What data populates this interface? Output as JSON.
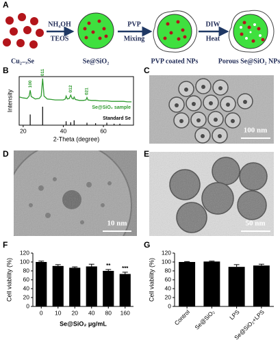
{
  "figure": {
    "A": {
      "label": "A",
      "reagents": [
        {
          "top": "NH₄OH",
          "bottom": "TEOS"
        },
        {
          "top": "PVP",
          "bottom": "Mixing"
        },
        {
          "top": "DIW",
          "bottom": "Heat"
        }
      ],
      "stages": [
        "Cu₂₋ₓSe",
        "Se@SiO₂",
        "PVP coated NPs",
        "Porous Se@SiO₂ NPs"
      ]
    },
    "B": {
      "label": "B"
    },
    "C": {
      "label": "C",
      "scale_bar": "100 nm"
    },
    "D": {
      "label": "D",
      "scale_bar": "10 nm"
    },
    "E": {
      "label": "E",
      "scale_bar": "50 nm"
    },
    "F": {
      "label": "F"
    },
    "G": {
      "label": "G"
    }
  },
  "chart_data": [
    {
      "type": "line",
      "xlabel": "2-Theta (degree)",
      "ylabel": "Intensity",
      "xlim": [
        18,
        75
      ],
      "ylim": [
        0,
        100
      ],
      "xticks": [
        20,
        40,
        60
      ],
      "series": [
        {
          "name": "Se@SiO₂ sample",
          "color": "#2e9a2e",
          "style": "line",
          "x": [
            18,
            20,
            22,
            23,
            23.5,
            24,
            26,
            28,
            29,
            29.7,
            30.4,
            32,
            34,
            36,
            38,
            40,
            41,
            41.4,
            42,
            43,
            43.7,
            44.4,
            45,
            45.4,
            46,
            48,
            50,
            51.3,
            51.8,
            52.3,
            54,
            56,
            58,
            60,
            62,
            64,
            66,
            68,
            70,
            72,
            74
          ],
          "values": [
            58,
            56,
            55,
            60,
            72,
            59,
            54,
            55,
            60,
            96,
            60,
            54,
            53,
            52,
            52,
            52,
            54,
            60,
            54,
            55,
            62,
            55,
            54,
            58,
            53,
            51,
            51,
            52,
            57,
            52,
            51,
            51,
            50,
            50,
            50,
            49,
            49,
            49,
            49,
            48,
            48
          ]
        },
        {
          "name": "Standard Se",
          "color": "#000000",
          "style": "stick",
          "x": [
            23.5,
            29.7,
            41.4,
            43.7,
            45.4,
            51.8,
            56.1,
            61.7,
            65.3,
            68.2
          ],
          "values": [
            22,
            38,
            8,
            6,
            10,
            5,
            4,
            5,
            3,
            3
          ]
        }
      ],
      "annotations": [
        {
          "text": "100",
          "x": 23.5,
          "y": 72
        },
        {
          "text": "011",
          "x": 29.7,
          "y": 96
        },
        {
          "text": "012",
          "x": 43.7,
          "y": 62
        },
        {
          "text": "021",
          "x": 51.8,
          "y": 57
        }
      ]
    },
    {
      "type": "bar",
      "xlabel": "Se@SiO₂ μg/mL",
      "ylabel": "Cell viability (%)",
      "color": "#000000",
      "categories": [
        "0",
        "10",
        "20",
        "40",
        "80",
        "160"
      ],
      "values": [
        100,
        91,
        87,
        90,
        80,
        73
      ],
      "errors": [
        2,
        3,
        2,
        5,
        3,
        4
      ],
      "significance": [
        null,
        null,
        null,
        null,
        "**",
        "***"
      ],
      "ylim": [
        0,
        120
      ],
      "yticks": [
        0,
        20,
        40,
        60,
        80,
        100,
        120
      ]
    },
    {
      "type": "bar",
      "ylabel": "Cell viability (%)",
      "color": "#000000",
      "rotate_labels": true,
      "categories": [
        "Control",
        "Se@SiO₂",
        "LPS",
        "Se@SiO₂+LPS"
      ],
      "values": [
        100,
        101,
        89,
        92
      ],
      "errors": [
        1,
        1,
        5,
        3
      ],
      "ylim": [
        0,
        120
      ],
      "yticks": [
        0,
        20,
        40,
        60,
        80,
        100,
        120
      ]
    }
  ]
}
